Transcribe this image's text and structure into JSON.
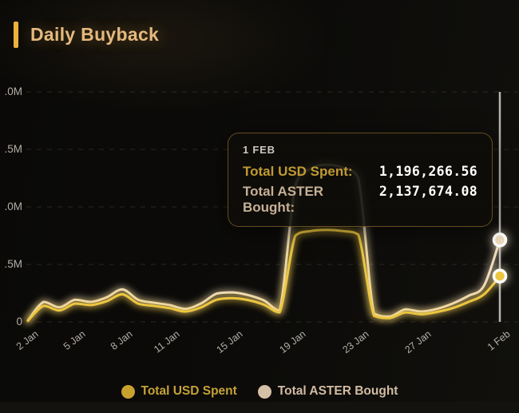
{
  "header": {
    "title": "Daily Buyback",
    "accent_color": "#ECB23C",
    "title_color": "#E5B97D"
  },
  "colors": {
    "background": "#0c0a08",
    "grid": "#35322c",
    "axis_label": "#b3aea6",
    "crosshair": "#c9c7c4",
    "tooltip_border": "rgba(186,146,60,0.5)"
  },
  "tooltip": {
    "date": "1 FEB",
    "rows": [
      {
        "label": "Total USD Spent:",
        "value": "1,196,266.56",
        "label_color": "#C09A33"
      },
      {
        "label": "Total ASTER Bought:",
        "value": "2,137,674.08",
        "label_color": "#C6B096"
      }
    ]
  },
  "legend": [
    {
      "label": "Total USD Spent",
      "swatch_color": "#C9A12E",
      "text_color": "#C5A237"
    },
    {
      "label": "Total ASTER Bought",
      "swatch_color": "#D5BFA5",
      "text_color": "#D2BCA2"
    }
  ],
  "chart_data": {
    "type": "line",
    "title": "Daily Buyback",
    "x": [
      "2 Jan",
      "3 Jan",
      "4 Jan",
      "5 Jan",
      "6 Jan",
      "7 Jan",
      "8 Jan",
      "9 Jan",
      "10 Jan",
      "11 Jan",
      "12 Jan",
      "13 Jan",
      "14 Jan",
      "15 Jan",
      "16 Jan",
      "17 Jan",
      "18 Jan",
      "19 Jan",
      "20 Jan",
      "21 Jan",
      "22 Jan",
      "23 Jan",
      "24 Jan",
      "25 Jan",
      "26 Jan",
      "27 Jan",
      "28 Jan",
      "29 Jan",
      "30 Jan",
      "31 Jan",
      "1 Feb"
    ],
    "x_tick_labels": [
      "2 Jan",
      "5 Jan",
      "8 Jan",
      "11 Jan",
      "15 Jan",
      "19 Jan",
      "23 Jan",
      "27 Jan",
      "1 Feb"
    ],
    "y_axis": {
      "tick_labels_displayed": [
        ".0M",
        ".5M",
        ".0M",
        ".5M",
        "0"
      ],
      "tick_values_millions": [
        6.0,
        4.5,
        3.0,
        1.5,
        0
      ],
      "ylim_millions": [
        0,
        6
      ]
    },
    "grid": "horizontal-dashed",
    "legend_position": "bottom-center",
    "series": [
      {
        "name": "Total USD Spent",
        "color": "#ECC63F",
        "unit": "millions",
        "values_m": [
          0.03,
          0.42,
          0.3,
          0.48,
          0.44,
          0.54,
          0.72,
          0.48,
          0.42,
          0.36,
          0.27,
          0.38,
          0.58,
          0.62,
          0.57,
          0.45,
          0.25,
          2.25,
          2.37,
          2.4,
          2.37,
          2.28,
          0.16,
          0.1,
          0.25,
          0.2,
          0.26,
          0.36,
          0.52,
          0.72,
          1.196267
        ]
      },
      {
        "name": "Total ASTER Bought",
        "color": "#EFDCBD",
        "unit": "millions",
        "values_m": [
          0.04,
          0.52,
          0.38,
          0.58,
          0.52,
          0.64,
          0.85,
          0.58,
          0.5,
          0.44,
          0.34,
          0.48,
          0.74,
          0.77,
          0.7,
          0.56,
          0.3,
          3.55,
          4.0,
          4.1,
          4.02,
          3.75,
          0.22,
          0.14,
          0.33,
          0.27,
          0.34,
          0.48,
          0.68,
          0.95,
          2.137674
        ]
      }
    ],
    "highlighted_point": {
      "x": "1 Feb",
      "total_usd_spent": 1196266.56,
      "total_aster_bought": 2137674.08
    }
  }
}
